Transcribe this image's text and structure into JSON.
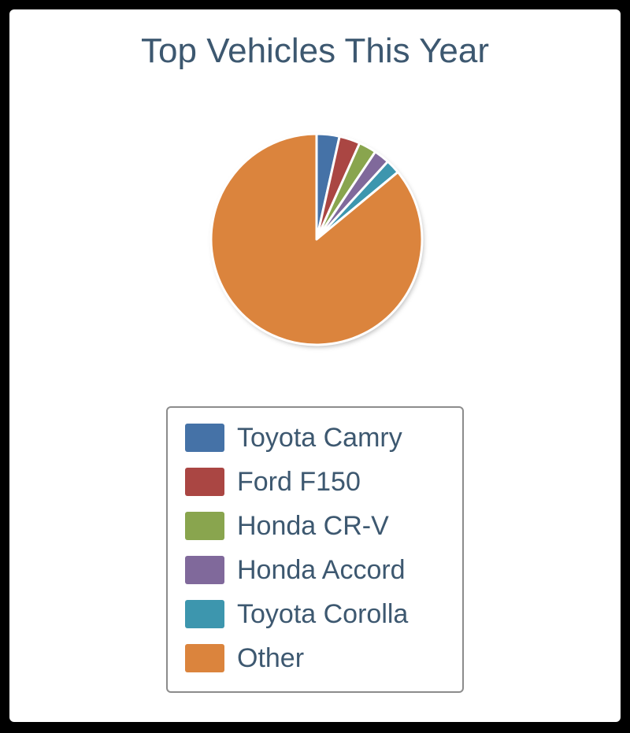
{
  "chart_data": {
    "type": "pie",
    "title": "Top Vehicles This Year",
    "slices": [
      {
        "label": "Toyota Camry",
        "value": 3.5,
        "color": "#4572a7"
      },
      {
        "label": "Ford F150",
        "value": 3.2,
        "color": "#aa4643"
      },
      {
        "label": "Honda CR-V",
        "value": 2.7,
        "color": "#89a54e"
      },
      {
        "label": "Honda Accord",
        "value": 2.4,
        "color": "#80699b"
      },
      {
        "label": "Toyota Corolla",
        "value": 2.2,
        "color": "#3d96ae"
      },
      {
        "label": "Other",
        "value": 86.0,
        "color": "#db843d"
      }
    ],
    "legend": {
      "position": "bottom"
    }
  }
}
